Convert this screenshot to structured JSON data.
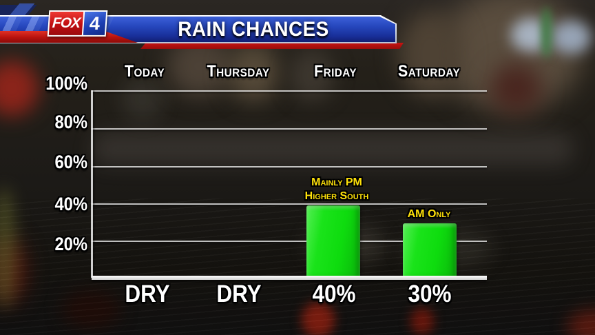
{
  "header": {
    "brand": {
      "network": "FOX",
      "channel": "4"
    },
    "title": "RAIN CHANCES"
  },
  "chart_data": {
    "type": "bar",
    "title": "RAIN CHANCES",
    "categories": [
      "Today",
      "Thursday",
      "Friday",
      "Saturday"
    ],
    "values": [
      0,
      0,
      40,
      30
    ],
    "value_labels": [
      "DRY",
      "DRY",
      "40%",
      "30%"
    ],
    "y_ticks": [
      "100%",
      "80%",
      "60%",
      "40%",
      "20%"
    ],
    "ylim": [
      0,
      100
    ],
    "grid": true,
    "legend": "none",
    "bar_color": "#12de12",
    "annotations": [
      {
        "category": "Friday",
        "lines": [
          "Mainly PM",
          "Higher South"
        ],
        "color": "#ffe20a"
      },
      {
        "category": "Saturday",
        "lines": [
          "AM Only"
        ],
        "color": "#ffe20a"
      }
    ]
  },
  "colors": {
    "banner_blue": "#2546bc",
    "accent_red": "#c41212",
    "bar_green": "#12de12",
    "annotation_yellow": "#ffe20a",
    "text_white": "#ffffff"
  }
}
